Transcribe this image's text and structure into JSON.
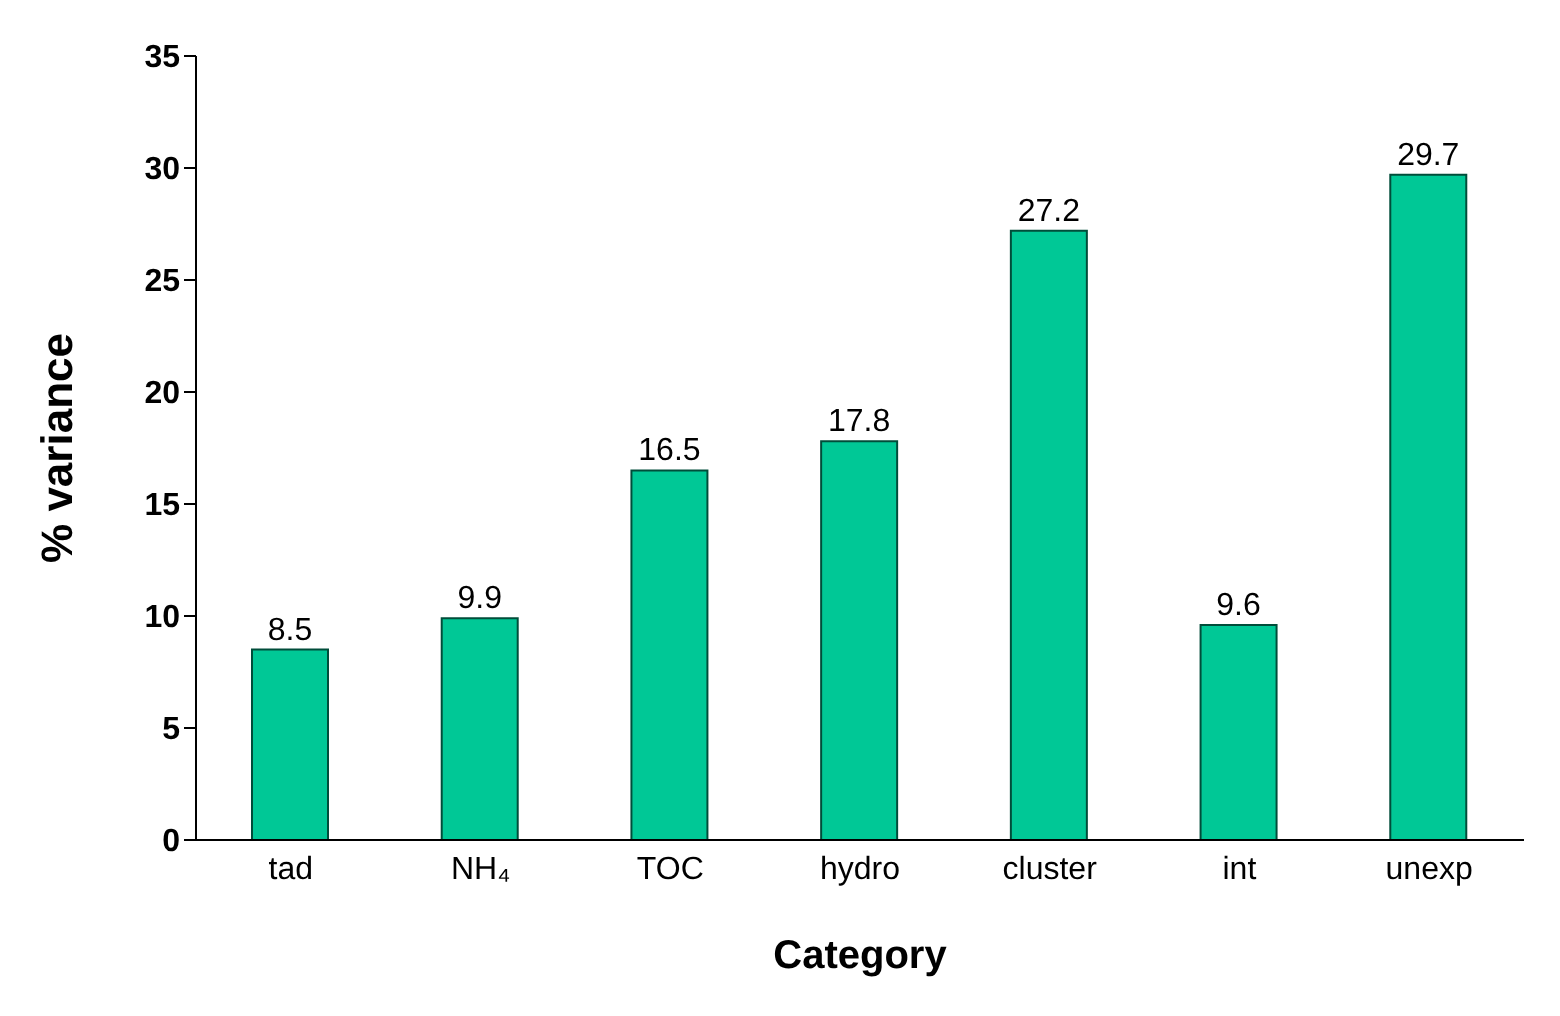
{
  "chart_data": {
    "type": "bar",
    "xlabel": "Category",
    "ylabel": "% variance",
    "categories": [
      "tad",
      "NH₄",
      "TOC",
      "hydro",
      "cluster",
      "int",
      "unexp"
    ],
    "values": [
      8.5,
      9.9,
      16.5,
      17.8,
      27.2,
      9.6,
      29.7
    ],
    "color": "#00c896",
    "ylim": [
      0,
      35
    ],
    "yticks": [
      0,
      5,
      10,
      15,
      20,
      25,
      30,
      35
    ],
    "data_labels": true,
    "grid": false
  }
}
